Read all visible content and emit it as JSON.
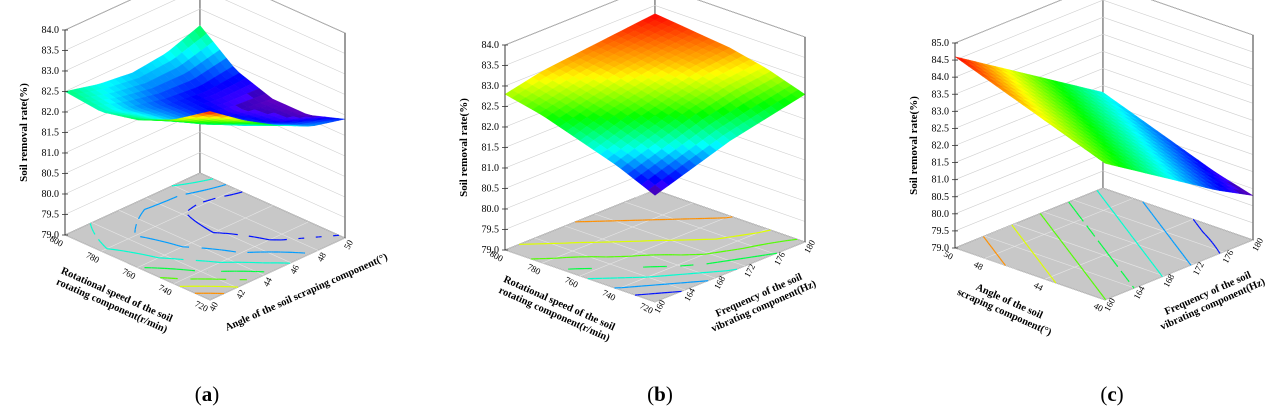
{
  "panels": [
    {
      "label_open": "(",
      "label_letter": "a",
      "label_close": ")",
      "zlabel": "Soil removal rate(%)",
      "xlabel": "Rotational speed of the soil rotating component(r/min)",
      "ylabel": "Angle of the soil scraping component(°)",
      "zticks": [
        "79.0",
        "79.5",
        "80.0",
        "80.5",
        "81.0",
        "81.5",
        "82.0",
        "82.5",
        "83.0",
        "83.5",
        "84.0"
      ],
      "xticks": [
        "720",
        "740",
        "760",
        "780",
        "800"
      ],
      "yticks": [
        "40",
        "42",
        "44",
        "46",
        "48",
        "50"
      ]
    },
    {
      "label_open": "(",
      "label_letter": "b",
      "label_close": ")",
      "zlabel": "Soil removal rate(%)",
      "xlabel": "Rotational speed of the soil rotating component(r/min)",
      "ylabel": "Frequency of the soil vibrating component(Hz)",
      "zticks": [
        "79.0",
        "79.5",
        "80.0",
        "80.5",
        "81.0",
        "81.5",
        "82.0",
        "82.5",
        "83.0",
        "83.5",
        "84.0"
      ],
      "xticks": [
        "720",
        "740",
        "760",
        "780",
        "800"
      ],
      "yticks": [
        "160",
        "164",
        "168",
        "172",
        "176",
        "180"
      ]
    },
    {
      "label_open": "(",
      "label_letter": "c",
      "label_close": ")",
      "zlabel": "Soil removal rate(%)",
      "xlabel": "Angle of the soil scraping component(°)",
      "ylabel": "Frequency of the soil vibrating component(Hz)",
      "zticks": [
        "79.0",
        "79.5",
        "80.0",
        "80.5",
        "81.0",
        "81.5",
        "82.0",
        "82.5",
        "83.0",
        "83.5",
        "84.0",
        "84.5",
        "85.0"
      ],
      "xticks": [
        "40",
        "44",
        "48",
        "50"
      ],
      "yticks": [
        "160",
        "164",
        "168",
        "172",
        "176",
        "180"
      ]
    }
  ],
  "chart_data": [
    {
      "type": "surface3d",
      "xlabel": "Rotational speed of the soil rotating component(r/min)",
      "ylabel": "Angle of the soil scraping component(°)",
      "zlabel": "Soil removal rate(%)",
      "xlim": [
        720,
        800
      ],
      "ylim": [
        40,
        50
      ],
      "zlim": [
        79.0,
        84.0
      ],
      "x": [
        720,
        740,
        760,
        780,
        800
      ],
      "y": [
        40,
        42.5,
        45,
        47.5,
        50
      ],
      "z": [
        [
          83.6,
          83.0,
          82.6,
          82.4,
          82.5
        ],
        [
          83.0,
          82.5,
          82.2,
          82.1,
          82.3
        ],
        [
          82.5,
          82.1,
          81.9,
          81.9,
          82.2
        ],
        [
          82.1,
          81.8,
          81.7,
          81.8,
          82.3
        ],
        [
          81.9,
          81.6,
          81.6,
          81.9,
          82.6
        ]
      ],
      "colormap": "rainbow",
      "grid": true
    },
    {
      "type": "surface3d",
      "xlabel": "Rotational speed of the soil rotating component(r/min)",
      "ylabel": "Frequency of the soil vibrating component(Hz)",
      "zlabel": "Soil removal rate(%)",
      "xlim": [
        720,
        800
      ],
      "ylim": [
        160,
        180
      ],
      "zlim": [
        79.0,
        84.0
      ],
      "x": [
        720,
        740,
        760,
        780,
        800
      ],
      "y": [
        160,
        165,
        170,
        175,
        180
      ],
      "z": [
        [
          81.6,
          82.0,
          82.3,
          82.6,
          82.8
        ],
        [
          81.9,
          82.3,
          82.6,
          82.8,
          83.0
        ],
        [
          82.2,
          82.6,
          82.8,
          83.0,
          83.1
        ],
        [
          82.4,
          82.8,
          83.0,
          83.1,
          83.2
        ],
        [
          82.6,
          82.9,
          83.1,
          83.2,
          83.3
        ]
      ],
      "colormap": "rainbow",
      "grid": true
    },
    {
      "type": "surface3d",
      "xlabel": "Angle of the soil scraping component(°)",
      "ylabel": "Frequency of the soil vibrating component(Hz)",
      "zlabel": "Soil removal rate(%)",
      "xlim": [
        40,
        50
      ],
      "ylim": [
        160,
        180
      ],
      "zlim": [
        79.0,
        85.0
      ],
      "x": [
        40,
        42.5,
        45,
        47.5,
        50
      ],
      "y": [
        160,
        165,
        170,
        175,
        180
      ],
      "z": [
        [
          83.0,
          83.4,
          83.8,
          84.2,
          84.6
        ],
        [
          82.3,
          82.7,
          83.1,
          83.5,
          83.9
        ],
        [
          81.6,
          82.0,
          82.4,
          82.8,
          83.2
        ],
        [
          80.9,
          81.3,
          81.7,
          82.1,
          82.5
        ],
        [
          80.3,
          80.6,
          81.0,
          81.4,
          81.8
        ]
      ],
      "colormap": "rainbow",
      "grid": true
    }
  ]
}
